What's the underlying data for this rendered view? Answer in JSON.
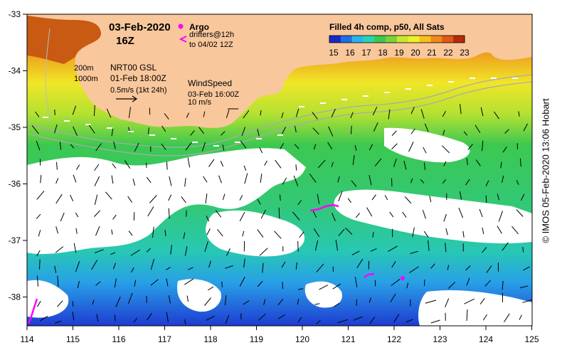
{
  "map": {
    "date_label": "03-Feb-2020",
    "time_label": "16Z",
    "legend_argo": "Argo",
    "legend_drifters_line1": "drifters@12h",
    "legend_drifters_line2": "to 04/02 12Z",
    "depth_label_200": "200m",
    "depth_label_1000": "1000m",
    "current_title": "NRT00 GSL",
    "current_date": "01-Feb 18:00Z",
    "current_scale": "0.5m/s (1kt 24h)",
    "wind_title": "WindSpeed",
    "wind_date": "03-Feb 16:00Z",
    "wind_scale": "10 m/s",
    "colorbar_title": "Filled 4h comp, p50, All Sats",
    "colorbar_ticks": [
      "15",
      "16",
      "17",
      "18",
      "19",
      "20",
      "21",
      "22",
      "23"
    ],
    "colorbar_colors": [
      "#1a28c8",
      "#1f6ee6",
      "#28b4ec",
      "#2ad2b4",
      "#3cc850",
      "#78d23c",
      "#c8e632",
      "#f0f028",
      "#f5c020",
      "#ee8a1a",
      "#e05a14",
      "#b42d0a"
    ],
    "lat_ticks": [
      "-33",
      "-34",
      "-35",
      "-36",
      "-37",
      "-38"
    ],
    "lon_ticks": [
      "114",
      "115",
      "116",
      "117",
      "118",
      "119",
      "120",
      "121",
      "122",
      "123",
      "124",
      "125"
    ],
    "credit": "© IMOS 05-Feb-2020 13:06 Hobart",
    "colors": {
      "land": "#f9c79c",
      "argo": "#ff00ff",
      "drifter": "#ff00ff"
    }
  }
}
